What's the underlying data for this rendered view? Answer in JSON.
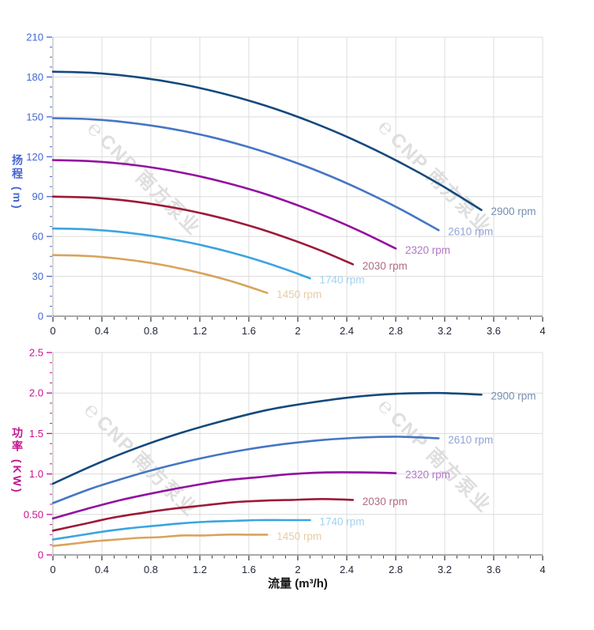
{
  "watermark": {
    "logo_glyph": "℮",
    "text": "CNP 南方泵业"
  },
  "style": {
    "grid_color": "#dcdcdc",
    "axis_line_color": "#b0b0b0",
    "x_axis_line_color": "#555555",
    "x_tick_color": "#444444",
    "x_label_color": "#23273a",
    "head_axis_color": "#4466d4",
    "power_axis_color": "#cc1090"
  },
  "chart_data": [
    {
      "id": "head-curve-chart",
      "type": "line",
      "title": "",
      "xlabel": "",
      "ylabel": "扬程 (m)",
      "xlim": [
        0,
        4
      ],
      "ylim": [
        0,
        210
      ],
      "grid": true,
      "legend_position": "end-of-line-labels",
      "x_tick_values": [
        0,
        0.4,
        0.8,
        1.2,
        1.6,
        2,
        2.4,
        2.8,
        3.2,
        3.6,
        4
      ],
      "x_tick_labels": [
        "0",
        "0.4",
        "0.8",
        "1.2",
        "1.6",
        "2",
        "2.4",
        "2.8",
        "3.2",
        "3.6",
        "4"
      ],
      "x_minor_step": 0.1,
      "y_tick_values": [
        0,
        30,
        60,
        90,
        120,
        150,
        180,
        210
      ],
      "y_tick_labels": [
        "0",
        "30",
        "60",
        "90",
        "120",
        "150",
        "180",
        "210"
      ],
      "y_minor_step": 7.5,
      "axis_color": "#4466d4",
      "series": [
        {
          "name": "2900 rpm",
          "color": "#15497c",
          "label_color": "#7590b0",
          "points": [
            [
              0,
              184
            ],
            [
              0.35,
              183
            ],
            [
              0.7,
              179.8
            ],
            [
              1.05,
              174.6
            ],
            [
              1.4,
              167.3
            ],
            [
              1.75,
              158
            ],
            [
              2.1,
              146.5
            ],
            [
              2.45,
              133
            ],
            [
              2.8,
              117.4
            ],
            [
              3.15,
              99.7
            ],
            [
              3.5,
              79.9
            ]
          ]
        },
        {
          "name": "2610 rpm",
          "color": "#4576c4",
          "label_color": "#91a5d6",
          "points": [
            [
              0,
              149
            ],
            [
              0.315,
              148.2
            ],
            [
              0.63,
              145.6
            ],
            [
              0.945,
              141.4
            ],
            [
              1.26,
              135.5
            ],
            [
              1.575,
              127.9
            ],
            [
              1.89,
              118.6
            ],
            [
              2.205,
              107.7
            ],
            [
              2.52,
              95
            ],
            [
              2.835,
              80.7
            ],
            [
              3.15,
              64.7
            ]
          ]
        },
        {
          "name": "2320 rpm",
          "color": "#930fa0",
          "label_color": "#b377c6",
          "points": [
            [
              0,
              117.5
            ],
            [
              0.28,
              116.8
            ],
            [
              0.56,
              114.8
            ],
            [
              0.84,
              111.5
            ],
            [
              1.12,
              106.8
            ],
            [
              1.4,
              100.8
            ],
            [
              1.68,
              93.5
            ],
            [
              1.96,
              84.8
            ],
            [
              2.24,
              74.8
            ],
            [
              2.52,
              63.5
            ],
            [
              2.8,
              50.9
            ]
          ]
        },
        {
          "name": "2030 rpm",
          "color": "#9c1a38",
          "label_color": "#b06a84",
          "points": [
            [
              0,
              90
            ],
            [
              0.245,
              89.5
            ],
            [
              0.49,
              88
            ],
            [
              0.735,
              85.4
            ],
            [
              0.98,
              81.8
            ],
            [
              1.225,
              77.2
            ],
            [
              1.47,
              71.6
            ],
            [
              1.715,
              65
            ],
            [
              1.96,
              57.3
            ],
            [
              2.205,
              48.7
            ],
            [
              2.45,
              39
            ]
          ]
        },
        {
          "name": "1740 rpm",
          "color": "#3aa5e0",
          "label_color": "#a0d2f2",
          "points": [
            [
              0,
              66
            ],
            [
              0.21,
              65.6
            ],
            [
              0.42,
              64.5
            ],
            [
              0.63,
              62.6
            ],
            [
              0.84,
              60
            ],
            [
              1.05,
              56.6
            ],
            [
              1.26,
              52.5
            ],
            [
              1.47,
              47.6
            ],
            [
              1.68,
              42
            ],
            [
              1.89,
              35.6
            ],
            [
              2.1,
              28.5
            ]
          ]
        },
        {
          "name": "1450 rpm",
          "color": "#d9a35c",
          "label_color": "#e6cca4",
          "points": [
            [
              0,
              46
            ],
            [
              0.175,
              45.7
            ],
            [
              0.35,
              44.9
            ],
            [
              0.525,
              43.4
            ],
            [
              0.7,
              41.4
            ],
            [
              0.875,
              38.9
            ],
            [
              1.05,
              35.7
            ],
            [
              1.225,
              32
            ],
            [
              1.4,
              27.8
            ],
            [
              1.575,
              22.9
            ],
            [
              1.75,
              17.5
            ]
          ]
        }
      ]
    },
    {
      "id": "power-curve-chart",
      "type": "line",
      "title": "",
      "xlabel": "流量 (m³/h)",
      "ylabel": "功率 (KW)",
      "xlim": [
        0,
        4
      ],
      "ylim": [
        0,
        2.5
      ],
      "grid": true,
      "legend_position": "end-of-line-labels",
      "x_tick_values": [
        0,
        0.4,
        0.8,
        1.2,
        1.6,
        2,
        2.4,
        2.8,
        3.2,
        3.6,
        4
      ],
      "x_tick_labels": [
        "0",
        "0.4",
        "0.8",
        "1.2",
        "1.6",
        "2",
        "2.4",
        "2.8",
        "3.2",
        "3.6",
        "4"
      ],
      "x_minor_step": 0.1,
      "y_tick_values": [
        0,
        0.5,
        1,
        1.5,
        2,
        2.5
      ],
      "y_tick_labels": [
        "0",
        "0.50",
        "1.0",
        "1.5",
        "2.0",
        "2.5"
      ],
      "y_minor_step": 0.125,
      "axis_color": "#cc1090",
      "series": [
        {
          "name": "2900 rpm",
          "color": "#15497c",
          "label_color": "#7590b0",
          "points": [
            [
              0,
              0.88
            ],
            [
              0.35,
              1.12
            ],
            [
              0.7,
              1.33
            ],
            [
              1.05,
              1.51
            ],
            [
              1.4,
              1.66
            ],
            [
              1.75,
              1.79
            ],
            [
              2.1,
              1.88
            ],
            [
              2.45,
              1.95
            ],
            [
              2.8,
              1.99
            ],
            [
              3.15,
              2.0
            ],
            [
              3.5,
              1.98
            ]
          ]
        },
        {
          "name": "2610 rpm",
          "color": "#4576c4",
          "label_color": "#91a5d6",
          "points": [
            [
              0,
              0.64
            ],
            [
              0.315,
              0.82
            ],
            [
              0.63,
              0.97
            ],
            [
              0.945,
              1.1
            ],
            [
              1.26,
              1.21
            ],
            [
              1.575,
              1.3
            ],
            [
              1.89,
              1.37
            ],
            [
              2.205,
              1.42
            ],
            [
              2.52,
              1.45
            ],
            [
              2.835,
              1.46
            ],
            [
              3.15,
              1.44
            ]
          ]
        },
        {
          "name": "2320 rpm",
          "color": "#930fa0",
          "label_color": "#b377c6",
          "points": [
            [
              0,
              0.45
            ],
            [
              0.28,
              0.57
            ],
            [
              0.56,
              0.68
            ],
            [
              0.84,
              0.77
            ],
            [
              1.12,
              0.85
            ],
            [
              1.4,
              0.92
            ],
            [
              1.68,
              0.96
            ],
            [
              1.96,
              1.0
            ],
            [
              2.24,
              1.02
            ],
            [
              2.52,
              1.02
            ],
            [
              2.8,
              1.01
            ]
          ]
        },
        {
          "name": "2030 rpm",
          "color": "#9c1a38",
          "label_color": "#b06a84",
          "points": [
            [
              0,
              0.3
            ],
            [
              0.245,
              0.38
            ],
            [
              0.49,
              0.46
            ],
            [
              0.735,
              0.52
            ],
            [
              0.98,
              0.57
            ],
            [
              1.225,
              0.61
            ],
            [
              1.47,
              0.65
            ],
            [
              1.715,
              0.67
            ],
            [
              1.96,
              0.68
            ],
            [
              2.205,
              0.69
            ],
            [
              2.45,
              0.68
            ]
          ]
        },
        {
          "name": "1740 rpm",
          "color": "#3aa5e0",
          "label_color": "#a0d2f2",
          "points": [
            [
              0,
              0.19
            ],
            [
              0.21,
              0.24
            ],
            [
              0.42,
              0.29
            ],
            [
              0.63,
              0.33
            ],
            [
              0.84,
              0.36
            ],
            [
              1.05,
              0.39
            ],
            [
              1.26,
              0.41
            ],
            [
              1.47,
              0.42
            ],
            [
              1.68,
              0.43
            ],
            [
              1.89,
              0.43
            ],
            [
              2.1,
              0.43
            ]
          ]
        },
        {
          "name": "1450 rpm",
          "color": "#d9a35c",
          "label_color": "#e6cca4",
          "points": [
            [
              0,
              0.11
            ],
            [
              0.175,
              0.14
            ],
            [
              0.35,
              0.17
            ],
            [
              0.525,
              0.19
            ],
            [
              0.7,
              0.21
            ],
            [
              0.875,
              0.22
            ],
            [
              1.05,
              0.24
            ],
            [
              1.225,
              0.24
            ],
            [
              1.4,
              0.25
            ],
            [
              1.575,
              0.25
            ],
            [
              1.75,
              0.25
            ]
          ]
        }
      ]
    }
  ]
}
